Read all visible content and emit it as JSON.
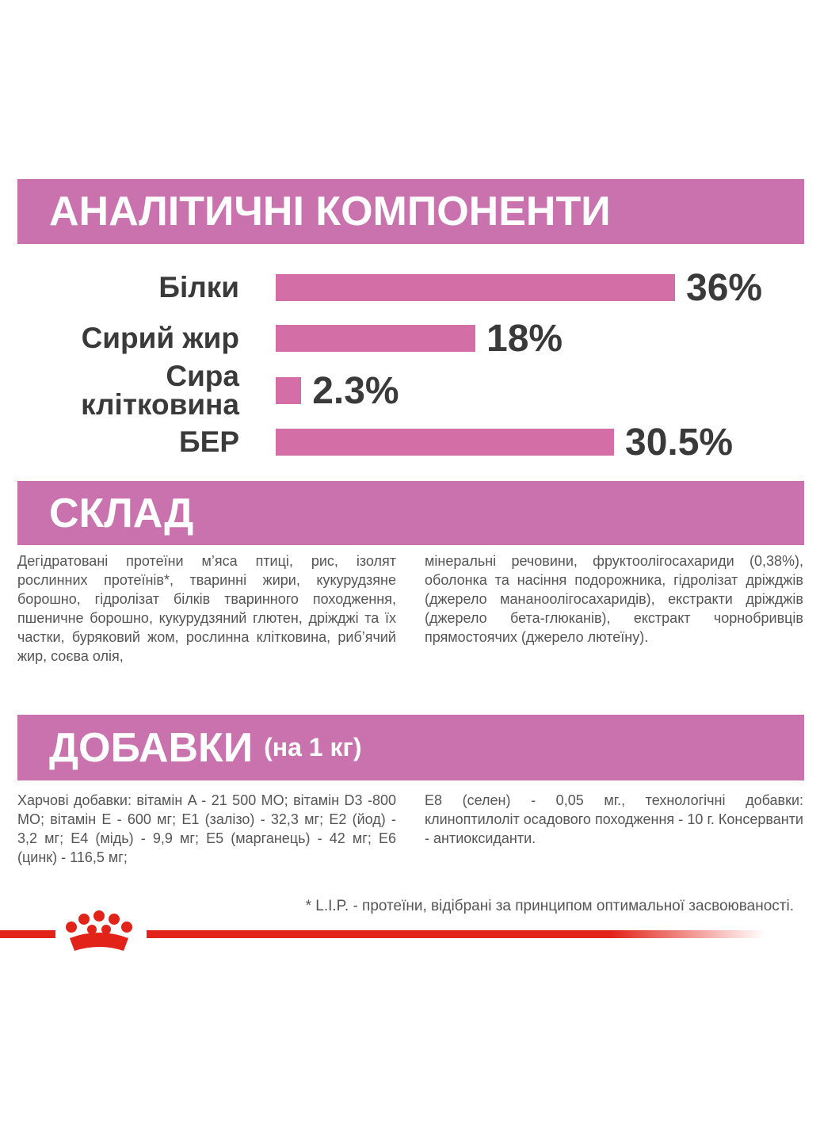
{
  "chart_data": {
    "type": "bar",
    "title": "АНАЛІТИЧНІ КОМПОНЕНТИ",
    "categories": [
      "Білки",
      "Сирий жир",
      "Сира клітковина",
      "БЕР"
    ],
    "values": [
      36,
      18,
      2.3,
      30.5
    ],
    "value_labels": [
      "36%",
      "18%",
      "2.3%",
      "30.5%"
    ],
    "color": "#d46ea7"
  },
  "composition": {
    "title": "СКЛАД",
    "columns": [
      "Дегідратовані протеїни м’яса птиці, рис, ізолят рослинних протеїнів*, тваринні жири, кукурудзяне борошно, гідролізат білків тваринного походження, пшеничне борошно, кукурудзяний глютен, дріжджі та їх частки, буряковий жом, рослинна клітковина, риб’ячий жир, соєва олія,",
      "мінеральні речовини, фруктоолігосахариди (0,38%), оболонка та насіння подорожника, гідролізат дріжджів (джерело манано­олігосахаридів), екстракти дріжджів (джерело бета-глюканів), екстракт чорнобривців прямостоячих (джерело лютеїну)."
    ]
  },
  "additives": {
    "title": "ДОБАВКИ",
    "subtitle": "(на 1 кг)",
    "columns": [
      "Харчові добавки: вітамін A - 21 500 МО; вітамін D3 -800 МО; вітамін E - 600 мг; E1 (залізо) - 32,3 мг; E2 (йод) - 3,2 мг; E4 (мідь) - 9,9 мг; E5 (марганець) - 42 мг; E6 (цинк) - 116,5 мг;",
      "E8 (селен) - 0,05 мг., технологічні добавки: клиноптилоліт осадового походження - 10 г. Консерванти - антиоксиданти."
    ]
  },
  "footnote": "* L.I.P. - протеїни, відібрані за принципом оптимальної засвоюваності."
}
